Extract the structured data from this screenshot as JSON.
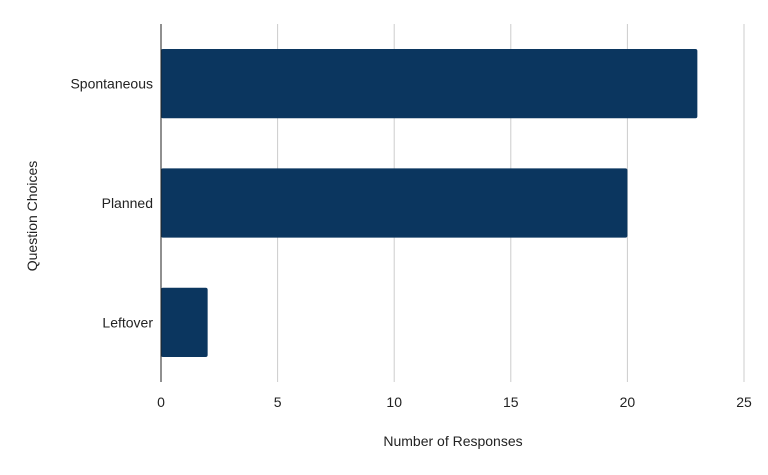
{
  "chart_data": {
    "type": "bar",
    "orientation": "horizontal",
    "categories": [
      "Spontaneous",
      "Planned",
      "Leftover"
    ],
    "values": [
      23,
      20,
      2
    ],
    "xlabel": "Number of Responses",
    "ylabel": "Question Choices",
    "xlim": [
      0,
      25
    ],
    "xticks": [
      "0",
      "5",
      "10",
      "15",
      "20",
      "25"
    ],
    "grid": true,
    "legend": "none",
    "bar_color": "#0b365f",
    "grid_color": "#cccccc",
    "axis_color": "#222222"
  }
}
